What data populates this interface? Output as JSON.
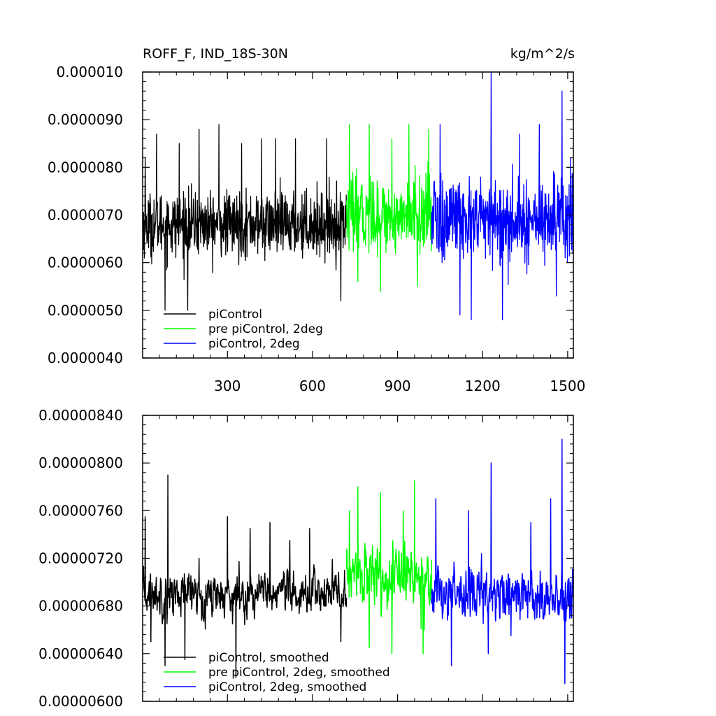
{
  "chart_data": [
    {
      "type": "line",
      "title": "ROFF_F, IND_18S-30N",
      "units": "kg/m^2/s",
      "xlim": [
        1,
        1520
      ],
      "ylim": [
        4e-06,
        1e-05
      ],
      "x_ticks": [
        300,
        600,
        900,
        1200,
        1500
      ],
      "x_tick_labels": [
        "300",
        "600",
        "900",
        "1200",
        "1500"
      ],
      "y_ticks": [
        4e-06,
        5e-06,
        6e-06,
        7e-06,
        8e-06,
        9e-06,
        1e-05
      ],
      "y_tick_labels": [
        "0.0000040",
        "0.0000050",
        "0.0000060",
        "0.0000070",
        "0.0000080",
        "0.0000090",
        "0.000010"
      ],
      "grid": false,
      "legend_position": "bottom-left",
      "series": [
        {
          "name": "piControl",
          "color": "#000000",
          "x_range": [
            1,
            720
          ],
          "mean": 6.8e-06,
          "spread": 6e-07,
          "peaks": [
            [
              10,
              8.2e-06
            ],
            [
              50,
              8.7e-06
            ],
            [
              80,
              5e-06
            ],
            [
              130,
              8.5e-06
            ],
            [
              160,
              5e-06
            ],
            [
              200,
              8.8e-06
            ],
            [
              270,
              8.9e-06
            ],
            [
              350,
              8.5e-06
            ],
            [
              420,
              8.6e-06
            ],
            [
              470,
              8.6e-06
            ],
            [
              540,
              8.6e-06
            ],
            [
              650,
              8.6e-06
            ],
            [
              700,
              5.2e-06
            ]
          ]
        },
        {
          "name": "pre piControl, 2deg",
          "color": "#00ff00",
          "x_range": [
            720,
            1020
          ],
          "mean": 7e-06,
          "spread": 7e-07,
          "peaks": [
            [
              730,
              8.9e-06
            ],
            [
              760,
              5.6e-06
            ],
            [
              800,
              8.9e-06
            ],
            [
              840,
              5.4e-06
            ],
            [
              880,
              8.6e-06
            ],
            [
              940,
              8.9e-06
            ],
            [
              970,
              5.5e-06
            ],
            [
              1010,
              8.8e-06
            ]
          ]
        },
        {
          "name": "piControl, 2deg",
          "color": "#0000ff",
          "x_range": [
            1020,
            1520
          ],
          "mean": 6.9e-06,
          "spread": 8e-07,
          "peaks": [
            [
              1050,
              8.9e-06
            ],
            [
              1120,
              4.9e-06
            ],
            [
              1160,
              4.8e-06
            ],
            [
              1230,
              1e-05
            ],
            [
              1270,
              4.8e-06
            ],
            [
              1330,
              8.7e-06
            ],
            [
              1400,
              8.9e-06
            ],
            [
              1460,
              5.3e-06
            ],
            [
              1480,
              9.6e-06
            ],
            [
              1510,
              8.2e-06
            ]
          ]
        }
      ]
    },
    {
      "type": "line",
      "title": "",
      "xlim": [
        1,
        1520
      ],
      "ylim": [
        6e-06,
        8.4e-06
      ],
      "x_ticks": [
        300,
        600,
        900,
        1200,
        1500
      ],
      "x_tick_labels": [],
      "y_ticks": [
        6e-06,
        6.4e-06,
        6.8e-06,
        7.2e-06,
        7.6e-06,
        8e-06,
        8.4e-06
      ],
      "y_tick_labels": [
        "0.00000600",
        "0.00000640",
        "0.00000680",
        "0.00000720",
        "0.00000760",
        "0.00000800",
        "0.00000840"
      ],
      "grid": false,
      "legend_position": "bottom-left",
      "series": [
        {
          "name": "piControl, smoothed",
          "color": "#000000",
          "x_range": [
            1,
            720
          ],
          "mean": 6.9e-06,
          "spread": 2.5e-07,
          "peaks": [
            [
              10,
              7.55e-06
            ],
            [
              30,
              6.5e-06
            ],
            [
              80,
              6.3e-06
            ],
            [
              90,
              7.9e-06
            ],
            [
              150,
              6.35e-06
            ],
            [
              200,
              7.2e-06
            ],
            [
              300,
              7.55e-06
            ],
            [
              330,
              6.2e-06
            ],
            [
              380,
              7.45e-06
            ],
            [
              450,
              7.5e-06
            ],
            [
              520,
              7.35e-06
            ],
            [
              590,
              7.45e-06
            ],
            [
              700,
              6.5e-06
            ]
          ]
        },
        {
          "name": "pre piControl, 2deg, smoothed",
          "color": "#00ff00",
          "x_range": [
            720,
            1020
          ],
          "mean": 7.05e-06,
          "spread": 3.5e-07,
          "peaks": [
            [
              730,
              7.6e-06
            ],
            [
              760,
              7.8e-06
            ],
            [
              800,
              6.45e-06
            ],
            [
              840,
              7.75e-06
            ],
            [
              880,
              6.4e-06
            ],
            [
              920,
              7.6e-06
            ],
            [
              960,
              7.85e-06
            ],
            [
              990,
              6.4e-06
            ]
          ]
        },
        {
          "name": "piControl, 2deg, smoothed",
          "color": "#0000ff",
          "x_range": [
            1020,
            1520
          ],
          "mean": 6.9e-06,
          "spread": 3e-07,
          "peaks": [
            [
              1035,
              7.7e-06
            ],
            [
              1090,
              6.3e-06
            ],
            [
              1150,
              7.6e-06
            ],
            [
              1220,
              6.4e-06
            ],
            [
              1230,
              8e-06
            ],
            [
              1300,
              6.55e-06
            ],
            [
              1370,
              7.5e-06
            ],
            [
              1440,
              7.7e-06
            ],
            [
              1480,
              8.2e-06
            ],
            [
              1490,
              6.15e-06
            ],
            [
              1510,
              7e-06
            ]
          ]
        }
      ]
    }
  ]
}
